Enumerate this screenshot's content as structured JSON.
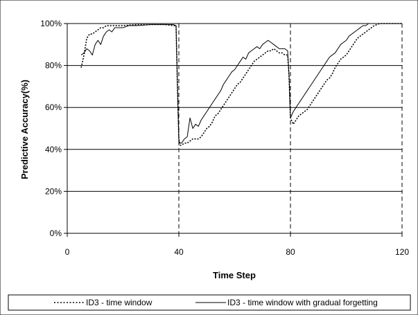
{
  "chart_data": {
    "type": "line",
    "title": "",
    "xlabel": "Time Step",
    "ylabel": "Predictive Accuracy(%)",
    "xlim": [
      0,
      120
    ],
    "ylim": [
      0,
      100
    ],
    "x_ticks": [
      "0",
      "40",
      "80",
      "120"
    ],
    "x_tick_values": [
      0,
      40,
      80,
      120
    ],
    "y_ticks": [
      "0%",
      "20%",
      "40%",
      "60%",
      "80%",
      "100%"
    ],
    "y_tick_values": [
      0,
      20,
      40,
      60,
      80,
      100
    ],
    "grid": "horizontal",
    "concept_drift_markers": [
      40,
      80,
      120
    ],
    "legend_position": "bottom",
    "series": [
      {
        "name": "ID3 - time window",
        "style": "dotted",
        "color": "#000000",
        "points": [
          [
            5,
            79
          ],
          [
            6,
            85
          ],
          [
            7,
            93
          ],
          [
            8,
            95
          ],
          [
            9,
            95
          ],
          [
            10,
            96
          ],
          [
            11,
            97
          ],
          [
            12,
            98
          ],
          [
            13,
            98
          ],
          [
            14,
            99
          ],
          [
            16,
            99
          ],
          [
            18,
            99
          ],
          [
            20,
            99
          ],
          [
            25,
            99.5
          ],
          [
            30,
            99.5
          ],
          [
            35,
            99.5
          ],
          [
            38,
            99
          ],
          [
            39,
            99
          ],
          [
            39.5,
            70
          ],
          [
            40,
            45
          ],
          [
            40.5,
            42
          ],
          [
            41,
            42
          ],
          [
            42,
            43
          ],
          [
            43,
            43
          ],
          [
            44,
            44
          ],
          [
            45,
            45
          ],
          [
            46,
            45
          ],
          [
            47,
            45
          ],
          [
            48,
            46
          ],
          [
            49,
            48
          ],
          [
            50,
            50
          ],
          [
            51,
            51
          ],
          [
            52,
            53
          ],
          [
            53,
            56
          ],
          [
            54,
            57
          ],
          [
            55,
            59
          ],
          [
            56,
            61
          ],
          [
            57,
            63
          ],
          [
            58,
            65
          ],
          [
            59,
            67
          ],
          [
            60,
            69
          ],
          [
            61,
            71
          ],
          [
            62,
            72
          ],
          [
            63,
            74
          ],
          [
            64,
            76
          ],
          [
            65,
            78
          ],
          [
            66,
            80
          ],
          [
            67,
            82
          ],
          [
            68,
            83
          ],
          [
            69,
            84
          ],
          [
            70,
            85
          ],
          [
            71,
            86
          ],
          [
            72,
            87
          ],
          [
            73,
            87
          ],
          [
            74,
            88
          ],
          [
            75,
            87
          ],
          [
            76,
            86
          ],
          [
            77,
            86
          ],
          [
            78,
            85
          ],
          [
            79,
            85
          ],
          [
            79.5,
            75
          ],
          [
            80,
            55
          ],
          [
            81,
            52
          ],
          [
            82,
            54
          ],
          [
            83,
            56
          ],
          [
            84,
            57
          ],
          [
            85,
            58
          ],
          [
            86,
            59
          ],
          [
            87,
            61
          ],
          [
            88,
            63
          ],
          [
            89,
            65
          ],
          [
            90,
            67
          ],
          [
            91,
            69
          ],
          [
            92,
            71
          ],
          [
            93,
            73
          ],
          [
            94,
            74
          ],
          [
            95,
            76
          ],
          [
            96,
            79
          ],
          [
            97,
            81
          ],
          [
            98,
            83
          ],
          [
            99,
            84
          ],
          [
            100,
            85
          ],
          [
            101,
            87
          ],
          [
            102,
            89
          ],
          [
            103,
            91
          ],
          [
            104,
            93
          ],
          [
            105,
            94
          ],
          [
            106,
            95
          ],
          [
            107,
            96
          ],
          [
            108,
            97
          ],
          [
            109,
            98
          ],
          [
            110,
            99
          ],
          [
            112,
            100
          ],
          [
            115,
            100
          ],
          [
            120,
            100
          ]
        ]
      },
      {
        "name": "ID3 - time window with gradual forgetting",
        "style": "solid",
        "color": "#000000",
        "points": [
          [
            5,
            85
          ],
          [
            6,
            86
          ],
          [
            7,
            88
          ],
          [
            8,
            87
          ],
          [
            9,
            85
          ],
          [
            10,
            90
          ],
          [
            11,
            92
          ],
          [
            12,
            90
          ],
          [
            13,
            94
          ],
          [
            14,
            96
          ],
          [
            15,
            97
          ],
          [
            16,
            96
          ],
          [
            17,
            98
          ],
          [
            18,
            98
          ],
          [
            20,
            98
          ],
          [
            22,
            99
          ],
          [
            25,
            99
          ],
          [
            30,
            99.5
          ],
          [
            35,
            99.5
          ],
          [
            38,
            99.5
          ],
          [
            39,
            99
          ],
          [
            39.5,
            70
          ],
          [
            40,
            44
          ],
          [
            40.5,
            43
          ],
          [
            41,
            43
          ],
          [
            42,
            45
          ],
          [
            43,
            46
          ],
          [
            44,
            55
          ],
          [
            45,
            50
          ],
          [
            46,
            52
          ],
          [
            47,
            51
          ],
          [
            48,
            54
          ],
          [
            49,
            56
          ],
          [
            50,
            58
          ],
          [
            51,
            60
          ],
          [
            52,
            62
          ],
          [
            53,
            64
          ],
          [
            54,
            66
          ],
          [
            55,
            68
          ],
          [
            56,
            71
          ],
          [
            57,
            73
          ],
          [
            58,
            75
          ],
          [
            59,
            77
          ],
          [
            60,
            78
          ],
          [
            61,
            80
          ],
          [
            62,
            82
          ],
          [
            63,
            84
          ],
          [
            64,
            83
          ],
          [
            65,
            86
          ],
          [
            66,
            87
          ],
          [
            67,
            88
          ],
          [
            68,
            89
          ],
          [
            69,
            88
          ],
          [
            70,
            90
          ],
          [
            71,
            91
          ],
          [
            72,
            92
          ],
          [
            73,
            91
          ],
          [
            74,
            90
          ],
          [
            75,
            89
          ],
          [
            76,
            88
          ],
          [
            77,
            88
          ],
          [
            78,
            88
          ],
          [
            79,
            87
          ],
          [
            79.5,
            75
          ],
          [
            80,
            55
          ],
          [
            81,
            58
          ],
          [
            82,
            60
          ],
          [
            83,
            62
          ],
          [
            84,
            64
          ],
          [
            85,
            66
          ],
          [
            86,
            68
          ],
          [
            87,
            70
          ],
          [
            88,
            72
          ],
          [
            89,
            74
          ],
          [
            90,
            76
          ],
          [
            91,
            78
          ],
          [
            92,
            80
          ],
          [
            93,
            82
          ],
          [
            94,
            84
          ],
          [
            95,
            85
          ],
          [
            96,
            86
          ],
          [
            97,
            88
          ],
          [
            98,
            90
          ],
          [
            99,
            91
          ],
          [
            100,
            92
          ],
          [
            101,
            94
          ],
          [
            102,
            95
          ],
          [
            103,
            96
          ],
          [
            104,
            97
          ],
          [
            105,
            98
          ],
          [
            106,
            99
          ],
          [
            107,
            99
          ],
          [
            108,
            100
          ],
          [
            110,
            100
          ],
          [
            115,
            100
          ],
          [
            120,
            100
          ]
        ]
      }
    ]
  },
  "colors": {
    "background": "#ffffff",
    "line": "#000000",
    "grid": "#000000",
    "drift_marker": "#000000"
  }
}
